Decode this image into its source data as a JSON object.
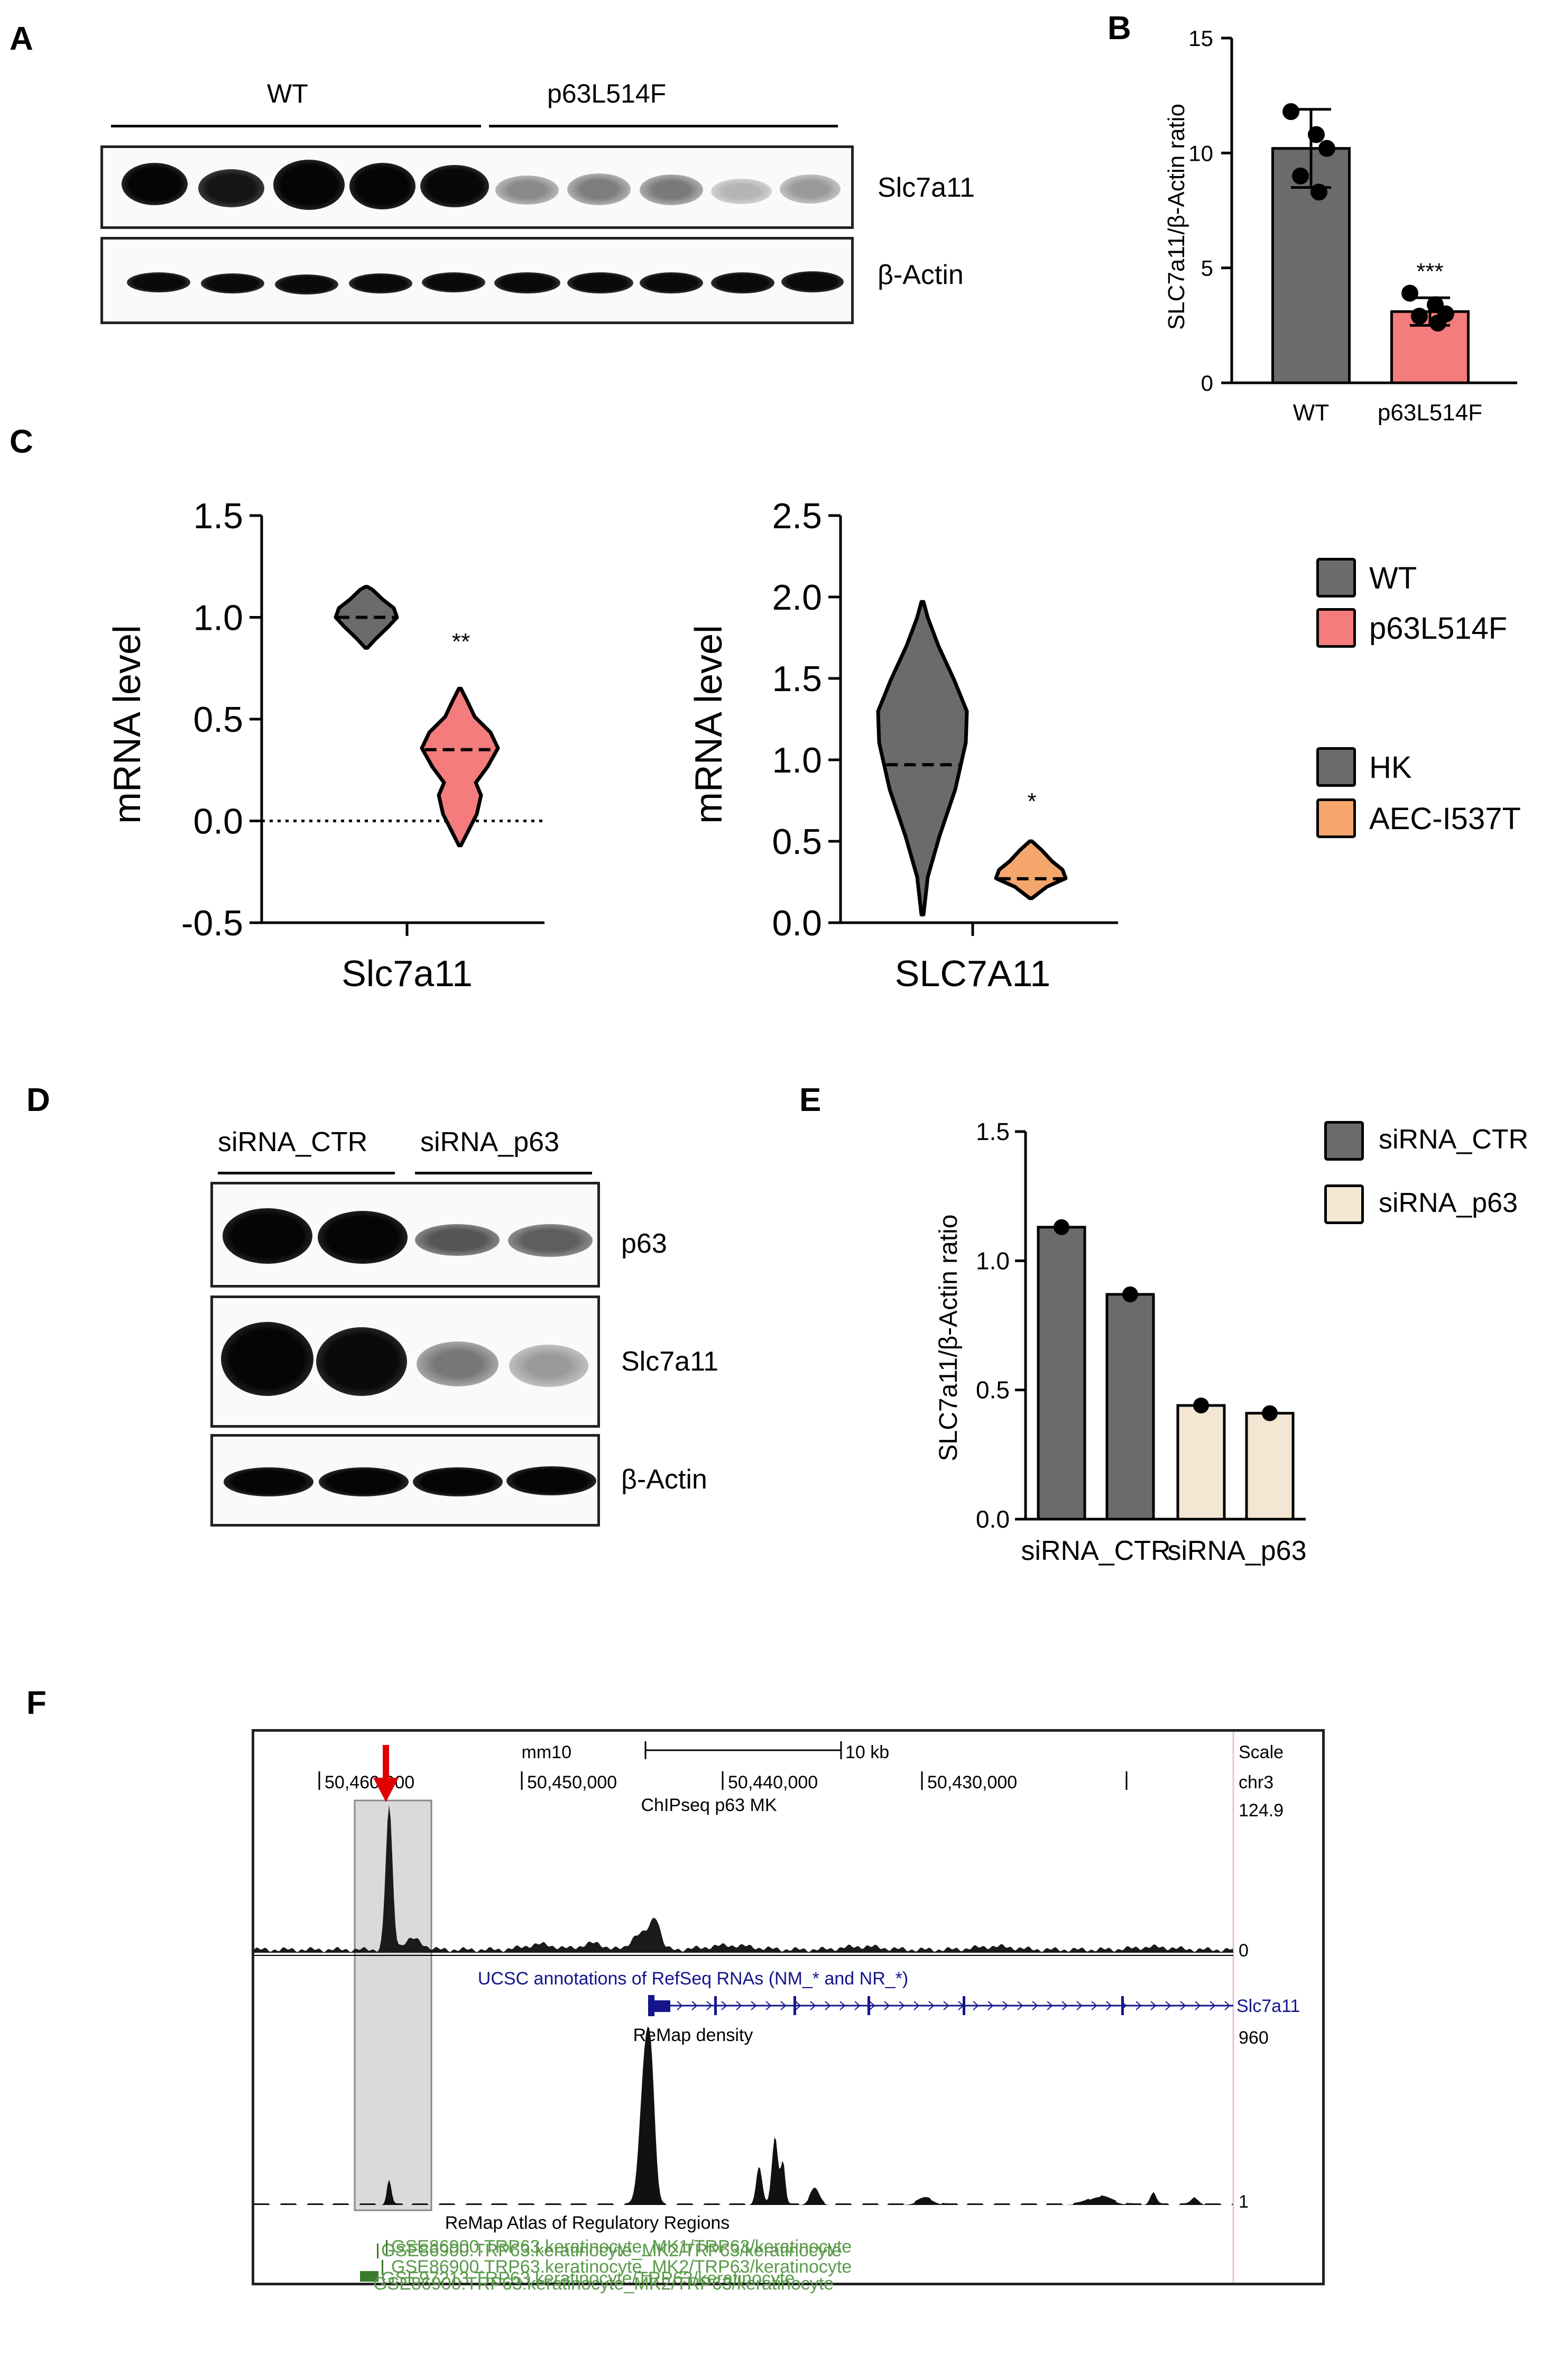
{
  "panels": {
    "A": "A",
    "B": "B",
    "C": "C",
    "D": "D",
    "E": "E",
    "F": "F"
  },
  "panelA": {
    "group1": "WT",
    "group2": "p63L514F",
    "blot1_label": "Slc7a11",
    "blot2_label": "β-Actin"
  },
  "panelB": {
    "ylabel": "SLC7a11/β-Actin ratio",
    "yticks": [
      "0",
      "5",
      "10",
      "15"
    ],
    "categories": [
      "WT",
      "p63L514F"
    ],
    "sig": "***",
    "colors": {
      "WT": "#6b6b6b",
      "p63L514F": "#f47c7c"
    }
  },
  "panelC": {
    "left": {
      "ylabel": "mRNA level",
      "xlabel": "Slc7a11",
      "yticks": [
        "-0.5",
        "0.0",
        "0.5",
        "1.0",
        "1.5"
      ],
      "sig": "**"
    },
    "right": {
      "ylabel": "mRNA level",
      "xlabel": "SLC7A11",
      "yticks": [
        "0.0",
        "0.5",
        "1.0",
        "1.5",
        "2.0",
        "2.5"
      ],
      "sig": "*"
    },
    "legend": [
      {
        "label": "WT",
        "color": "#6b6b6b"
      },
      {
        "label": "p63L514F",
        "color": "#f47c7c"
      },
      {
        "label": "HK",
        "color": "#6b6b6b"
      },
      {
        "label": "AEC-I537T",
        "color": "#f5a66c"
      }
    ]
  },
  "panelD": {
    "group1": "siRNA_CTR",
    "group2": "siRNA_p63",
    "blot1_label": "p63",
    "blot2_label": "Slc7a11",
    "blot3_label": "β-Actin"
  },
  "panelE": {
    "ylabel": "SLC7a11/β-Actin ratio",
    "yticks": [
      "0.0",
      "0.5",
      "1.0",
      "1.5"
    ],
    "categories": [
      "siRNA_CTR",
      "siRNA_p63"
    ],
    "legend": [
      {
        "label": "siRNA_CTR",
        "color": "#6b6b6b"
      },
      {
        "label": "siRNA_p63",
        "color": "#f3e6d3"
      }
    ]
  },
  "panelF": {
    "assembly": "mm10",
    "scale_text": "10 kb",
    "scale_label": "Scale",
    "chrom": "chr3",
    "coords": [
      "50,460,000",
      "50,450,000",
      "50,440,000",
      "50,430,000"
    ],
    "track1_title": "ChIPseq p63 MK",
    "track1_max": "124.9",
    "track1_min": "0",
    "track2_title": "UCSC annotations of RefSeq RNAs (NM_* and NR_*)",
    "gene": "Slc7a11",
    "track3_title": "ReMap density",
    "track3_max": "960",
    "track3_min": "1",
    "track4_title": "ReMap Atlas of Regulatory Regions",
    "regions": [
      "GSE86900.TRP63.keratinocyte_MK2/TRP63/keratinocyte",
      "GSE97213.TRP63.keratinocyte/TRP63/keratinocyte",
      "GSE86900.TRP63.keratinocyte_MK1/TRP63/keratinocyte",
      "GSE86900.TRP63.keratinocyte_MK2/TRP63/keratinocyte",
      "GSE86900.TRP63.keratinocyte_MK2/TRP63/keratinocyte"
    ]
  },
  "chart_data": [
    {
      "panel": "B",
      "type": "bar",
      "categories": [
        "WT",
        "p63L514F"
      ],
      "values": [
        10.2,
        3.1
      ],
      "error": [
        1.7,
        0.6
      ],
      "points": [
        [
          11.8,
          10.8,
          10.2,
          9.0,
          8.3
        ],
        [
          3.9,
          3.4,
          3.0,
          2.9,
          2.6
        ]
      ],
      "ylabel": "SLC7a11/β-Actin ratio",
      "ylim": [
        0,
        15
      ]
    },
    {
      "panel": "C-left",
      "type": "violin",
      "categories": [
        "WT",
        "p63L514F"
      ],
      "medians": [
        1.0,
        0.35
      ],
      "ranges": [
        [
          0.85,
          1.15
        ],
        [
          -0.12,
          0.65
        ]
      ],
      "ylabel": "mRNA level",
      "xlabel": "Slc7a11",
      "ylim": [
        -0.5,
        1.5
      ]
    },
    {
      "panel": "C-right",
      "type": "violin",
      "categories": [
        "HK",
        "AEC-I537T"
      ],
      "medians": [
        0.97,
        0.27
      ],
      "ranges": [
        [
          0.05,
          1.97
        ],
        [
          0.15,
          0.5
        ]
      ],
      "ylabel": "mRNA level",
      "xlabel": "SLC7A11",
      "ylim": [
        0,
        2.5
      ]
    },
    {
      "panel": "E",
      "type": "bar",
      "categories": [
        "siRNA_CTR",
        "siRNA_CTR",
        "siRNA_p63",
        "siRNA_p63"
      ],
      "values": [
        1.13,
        0.87,
        0.44,
        0.41
      ],
      "series_colors": [
        "#6b6b6b",
        "#6b6b6b",
        "#f3e6d3",
        "#f3e6d3"
      ],
      "ylabel": "SLC7a11/β-Actin ratio",
      "ylim": [
        0,
        1.5
      ]
    }
  ]
}
